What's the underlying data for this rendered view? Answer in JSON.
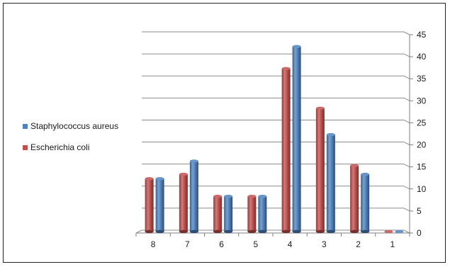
{
  "chart_data": {
    "type": "bar",
    "categories": [
      "8",
      "7",
      "6",
      "5",
      "4",
      "3",
      "2",
      "1"
    ],
    "series": [
      {
        "name": "Escherichia coli",
        "color": "#c0504d",
        "values": [
          12,
          13,
          8,
          8,
          37,
          28,
          15,
          0
        ]
      },
      {
        "name": "Staphylococcus aureus",
        "color": "#4f81bd",
        "values": [
          12,
          16,
          8,
          8,
          42,
          22,
          13,
          0
        ]
      }
    ],
    "ylim": [
      0,
      45
    ],
    "y_ticks": [
      "0",
      "5",
      "10",
      "15",
      "20",
      "25",
      "30",
      "35",
      "40",
      "45"
    ],
    "y_axis_position": "right",
    "grid": true,
    "legend_position": "left",
    "style": "3d-cylinder"
  }
}
